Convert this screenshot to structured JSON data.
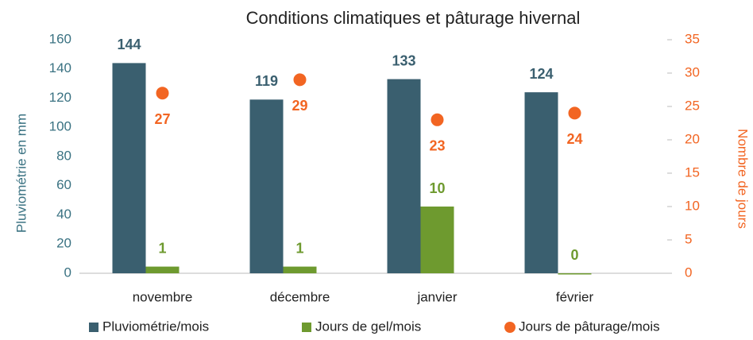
{
  "chart_data": {
    "type": "bar",
    "title": "Conditions climatiques et pâturage hivernal",
    "y_label": "Pluviométrie en mm",
    "y2_label": "Nombre de jours",
    "categories": [
      "novembre",
      "décembre",
      "janvier",
      "février"
    ],
    "series": [
      {
        "name": "Pluviométrie/mois",
        "color": "#3a5f6f",
        "type": "bar",
        "axis": "y",
        "values": [
          144,
          119,
          133,
          124
        ]
      },
      {
        "name": "Jours de gel/mois",
        "color": "#6e9a2f",
        "type": "bar",
        "axis": "y2",
        "values": [
          1,
          1,
          10,
          0
        ]
      },
      {
        "name": "Jours de pâturage/mois",
        "color": "#f26522",
        "type": "scatter",
        "axis": "y2",
        "values": [
          27,
          29,
          23,
          24
        ]
      }
    ],
    "ylim": [
      0,
      160
    ],
    "yticks": [
      0,
      20,
      40,
      60,
      80,
      100,
      120,
      140,
      160
    ],
    "y2lim": [
      0,
      35
    ],
    "y2ticks": [
      0,
      5,
      10,
      15,
      20,
      25,
      30,
      35
    ],
    "grid": false,
    "legend": "bottom"
  }
}
